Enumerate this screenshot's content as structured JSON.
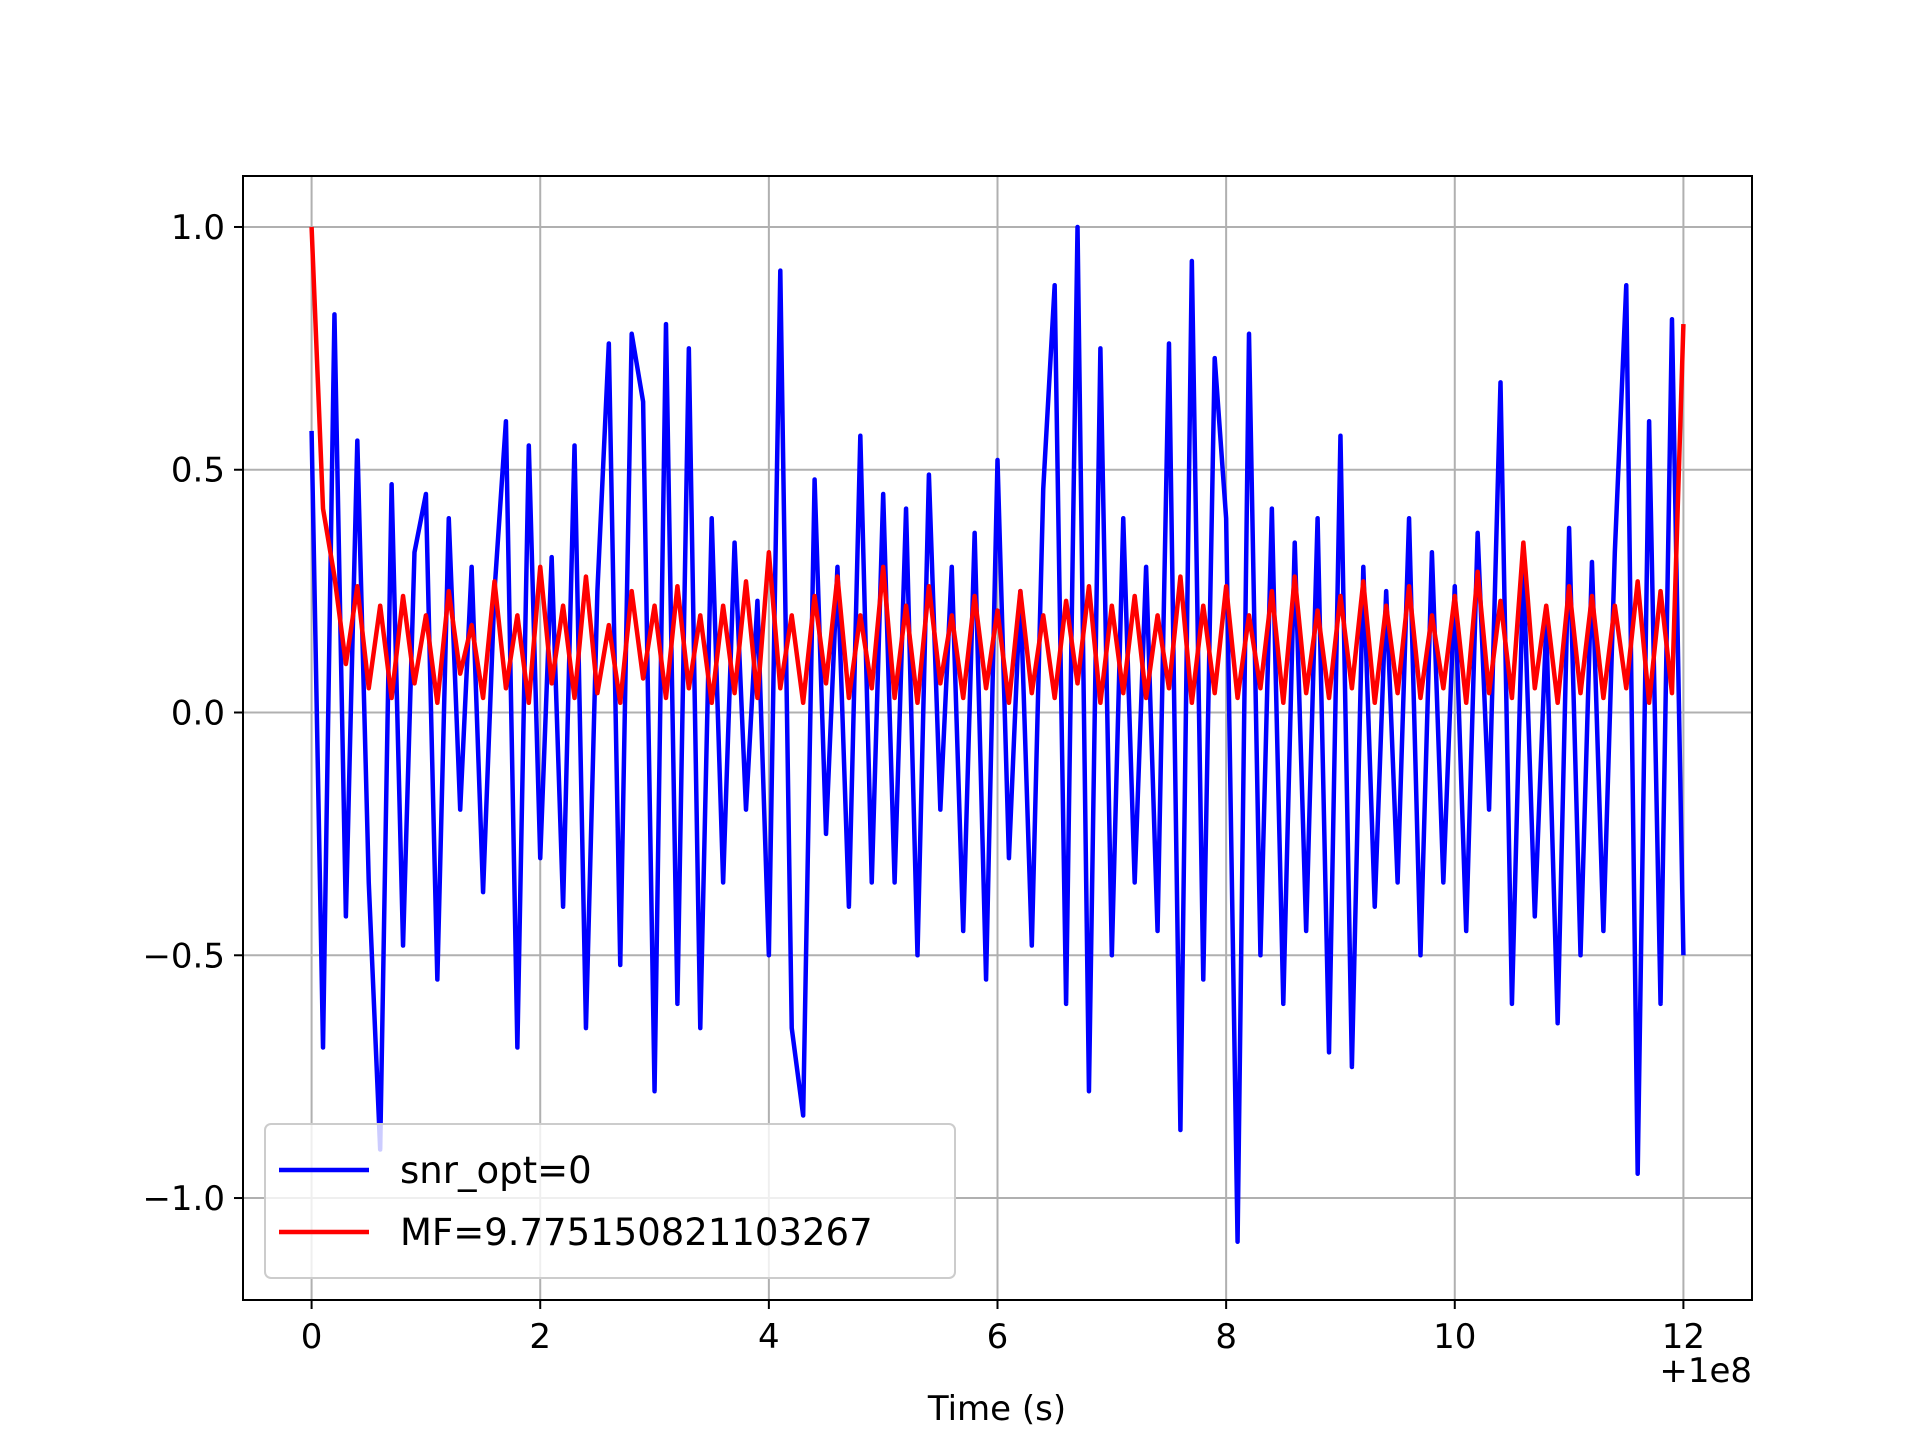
{
  "chart_data": {
    "type": "line",
    "xlabel": "Time (s)",
    "x_offset_label": "+1e8",
    "x": [
      0.0,
      0.1,
      0.2,
      0.3,
      0.4,
      0.5,
      0.6,
      0.7,
      0.8,
      0.9,
      1.0,
      1.1,
      1.2,
      1.3,
      1.4,
      1.5,
      1.6,
      1.7,
      1.8,
      1.9,
      2.0,
      2.1,
      2.2,
      2.3,
      2.4,
      2.5,
      2.6,
      2.7,
      2.8,
      2.9,
      3.0,
      3.1,
      3.2,
      3.3,
      3.4,
      3.5,
      3.6,
      3.7,
      3.8,
      3.9,
      4.0,
      4.1,
      4.2,
      4.3,
      4.4,
      4.5,
      4.6,
      4.7,
      4.8,
      4.9,
      5.0,
      5.1,
      5.2,
      5.3,
      5.4,
      5.5,
      5.6,
      5.7,
      5.8,
      5.9,
      6.0,
      6.1,
      6.2,
      6.3,
      6.4,
      6.5,
      6.6,
      6.7,
      6.8,
      6.9,
      7.0,
      7.1,
      7.2,
      7.3,
      7.4,
      7.5,
      7.6,
      7.7,
      7.8,
      7.9,
      8.0,
      8.1,
      8.2,
      8.3,
      8.4,
      8.5,
      8.6,
      8.7,
      8.8,
      8.9,
      9.0,
      9.1,
      9.2,
      9.3,
      9.4,
      9.5,
      9.6,
      9.7,
      9.8,
      9.9,
      10.0,
      10.1,
      10.2,
      10.3,
      10.4,
      10.5,
      10.6,
      10.7,
      10.8,
      10.9,
      11.0,
      11.1,
      11.2,
      11.3,
      11.4,
      11.5,
      11.6,
      11.7,
      11.8,
      11.9,
      12.0
    ],
    "series": [
      {
        "name": "snr_opt=0",
        "color": "#0000ff",
        "values": [
          0.58,
          -0.69,
          0.82,
          -0.42,
          0.56,
          -0.35,
          -0.9,
          0.47,
          -0.48,
          0.33,
          0.45,
          -0.55,
          0.4,
          -0.2,
          0.3,
          -0.37,
          0.25,
          0.6,
          -0.69,
          0.55,
          -0.3,
          0.32,
          -0.4,
          0.55,
          -0.65,
          0.25,
          0.76,
          -0.52,
          0.78,
          0.64,
          -0.78,
          0.8,
          -0.6,
          0.75,
          -0.65,
          0.4,
          -0.35,
          0.35,
          -0.2,
          0.23,
          -0.5,
          0.91,
          -0.65,
          -0.83,
          0.48,
          -0.25,
          0.3,
          -0.4,
          0.57,
          -0.35,
          0.45,
          -0.35,
          0.42,
          -0.5,
          0.49,
          -0.2,
          0.3,
          -0.45,
          0.37,
          -0.55,
          0.52,
          -0.3,
          0.25,
          -0.48,
          0.46,
          0.88,
          -0.6,
          1.0,
          -0.78,
          0.75,
          -0.5,
          0.4,
          -0.35,
          0.3,
          -0.45,
          0.76,
          -0.86,
          0.93,
          -0.55,
          0.73,
          0.4,
          -1.09,
          0.78,
          -0.5,
          0.42,
          -0.6,
          0.35,
          -0.45,
          0.4,
          -0.7,
          0.57,
          -0.73,
          0.3,
          -0.4,
          0.25,
          -0.35,
          0.4,
          -0.5,
          0.33,
          -0.35,
          0.26,
          -0.45,
          0.37,
          -0.2,
          0.68,
          -0.6,
          0.3,
          -0.42,
          0.18,
          -0.64,
          0.38,
          -0.5,
          0.31,
          -0.45,
          0.33,
          0.88,
          -0.95,
          0.6,
          -0.6,
          0.81,
          -0.5
        ]
      },
      {
        "name": "MF=9.775150821103267",
        "color": "#ff0000",
        "values": [
          1.0,
          0.42,
          0.28,
          0.1,
          0.26,
          0.05,
          0.22,
          0.03,
          0.24,
          0.06,
          0.2,
          0.02,
          0.25,
          0.08,
          0.18,
          0.03,
          0.27,
          0.05,
          0.2,
          0.02,
          0.3,
          0.06,
          0.22,
          0.03,
          0.28,
          0.04,
          0.18,
          0.02,
          0.25,
          0.07,
          0.22,
          0.03,
          0.26,
          0.05,
          0.2,
          0.02,
          0.22,
          0.04,
          0.27,
          0.03,
          0.33,
          0.05,
          0.2,
          0.02,
          0.24,
          0.06,
          0.28,
          0.03,
          0.2,
          0.05,
          0.3,
          0.03,
          0.22,
          0.02,
          0.26,
          0.06,
          0.2,
          0.03,
          0.24,
          0.05,
          0.21,
          0.02,
          0.25,
          0.04,
          0.2,
          0.03,
          0.23,
          0.06,
          0.26,
          0.02,
          0.22,
          0.04,
          0.24,
          0.03,
          0.2,
          0.05,
          0.28,
          0.02,
          0.22,
          0.04,
          0.26,
          0.03,
          0.2,
          0.05,
          0.25,
          0.02,
          0.28,
          0.04,
          0.21,
          0.03,
          0.24,
          0.05,
          0.27,
          0.02,
          0.22,
          0.04,
          0.26,
          0.03,
          0.2,
          0.05,
          0.24,
          0.02,
          0.29,
          0.04,
          0.23,
          0.03,
          0.35,
          0.05,
          0.22,
          0.02,
          0.26,
          0.04,
          0.24,
          0.03,
          0.22,
          0.05,
          0.27,
          0.02,
          0.25,
          0.04,
          0.8
        ]
      }
    ],
    "xlim": [
      -0.6,
      12.6
    ],
    "ylim": [
      -1.21,
      1.105
    ],
    "xticks": [
      0,
      2,
      4,
      6,
      8,
      10,
      12
    ],
    "yticks": [
      {
        "value": -1.0,
        "label": "−1.0"
      },
      {
        "value": -0.5,
        "label": "−0.5"
      },
      {
        "value": 0.0,
        "label": "0.0"
      },
      0.5,
      {
        "value": 1.0,
        "label": "1.0"
      }
    ],
    "grid": true,
    "legend": "lower left"
  }
}
